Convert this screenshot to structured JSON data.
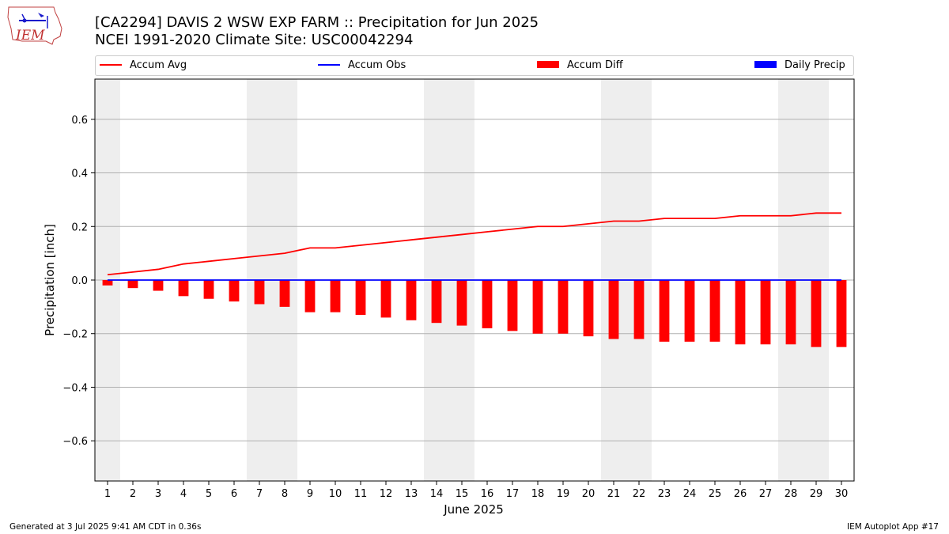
{
  "header": {
    "title_line1": "[CA2294] DAVIS 2 WSW EXP FARM :: Precipitation for Jun 2025",
    "title_line2": "NCEI 1991-2020 Climate Site: USC00042294",
    "logo_text": "IEM"
  },
  "legend": {
    "avg": "Accum Avg",
    "obs": "Accum Obs",
    "diff": "Accum Diff",
    "daily": "Daily Precip"
  },
  "footer": {
    "generated": "Generated at 3 Jul 2025 9:41 AM CDT in 0.36s",
    "app": "IEM Autoplot App #17"
  },
  "colors": {
    "avg": "#ff0000",
    "obs": "#0000ff",
    "diff": "#ff0000",
    "daily": "#0000ff",
    "weekend_band": "#eeeeee",
    "grid": "#b0b0b0"
  },
  "chart_data": {
    "type": "bar",
    "xlabel": "June 2025",
    "ylabel": "Precipitation [inch]",
    "ylim": [
      -0.75,
      0.75
    ],
    "yticks": [
      -0.6,
      -0.4,
      -0.2,
      0.0,
      0.2,
      0.4,
      0.6
    ],
    "ytick_labels": [
      "−0.6",
      "−0.4",
      "−0.2",
      "0.0",
      "0.2",
      "0.4",
      "0.6"
    ],
    "x": [
      1,
      2,
      3,
      4,
      5,
      6,
      7,
      8,
      9,
      10,
      11,
      12,
      13,
      14,
      15,
      16,
      17,
      18,
      19,
      20,
      21,
      22,
      23,
      24,
      25,
      26,
      27,
      28,
      29,
      30
    ],
    "weekend_days": [
      1,
      7,
      8,
      14,
      15,
      21,
      22,
      28,
      29
    ],
    "grid": "horizontal",
    "legend_position": "top",
    "series": [
      {
        "name": "Accum Avg",
        "type": "line",
        "values": [
          0.02,
          0.03,
          0.04,
          0.06,
          0.07,
          0.08,
          0.09,
          0.1,
          0.12,
          0.12,
          0.13,
          0.14,
          0.15,
          0.16,
          0.17,
          0.18,
          0.19,
          0.2,
          0.2,
          0.21,
          0.22,
          0.22,
          0.23,
          0.23,
          0.23,
          0.24,
          0.24,
          0.24,
          0.25,
          0.25
        ]
      },
      {
        "name": "Accum Obs",
        "type": "line",
        "values": [
          0,
          0,
          0,
          0,
          0,
          0,
          0,
          0,
          0,
          0,
          0,
          0,
          0,
          0,
          0,
          0,
          0,
          0,
          0,
          0,
          0,
          0,
          0,
          0,
          0,
          0,
          0,
          0,
          0,
          0
        ]
      },
      {
        "name": "Accum Diff",
        "type": "bar",
        "values": [
          -0.02,
          -0.03,
          -0.04,
          -0.06,
          -0.07,
          -0.08,
          -0.09,
          -0.1,
          -0.12,
          -0.12,
          -0.13,
          -0.14,
          -0.15,
          -0.16,
          -0.17,
          -0.18,
          -0.19,
          -0.2,
          -0.2,
          -0.21,
          -0.22,
          -0.22,
          -0.23,
          -0.23,
          -0.23,
          -0.24,
          -0.24,
          -0.24,
          -0.25,
          -0.25
        ]
      },
      {
        "name": "Daily Precip",
        "type": "bar",
        "values": [
          0,
          0,
          0,
          0,
          0,
          0,
          0,
          0,
          0,
          0,
          0,
          0,
          0,
          0,
          0,
          0,
          0,
          0,
          0,
          0,
          0,
          0,
          0,
          0,
          0,
          0,
          0,
          0,
          0,
          0
        ]
      }
    ]
  }
}
